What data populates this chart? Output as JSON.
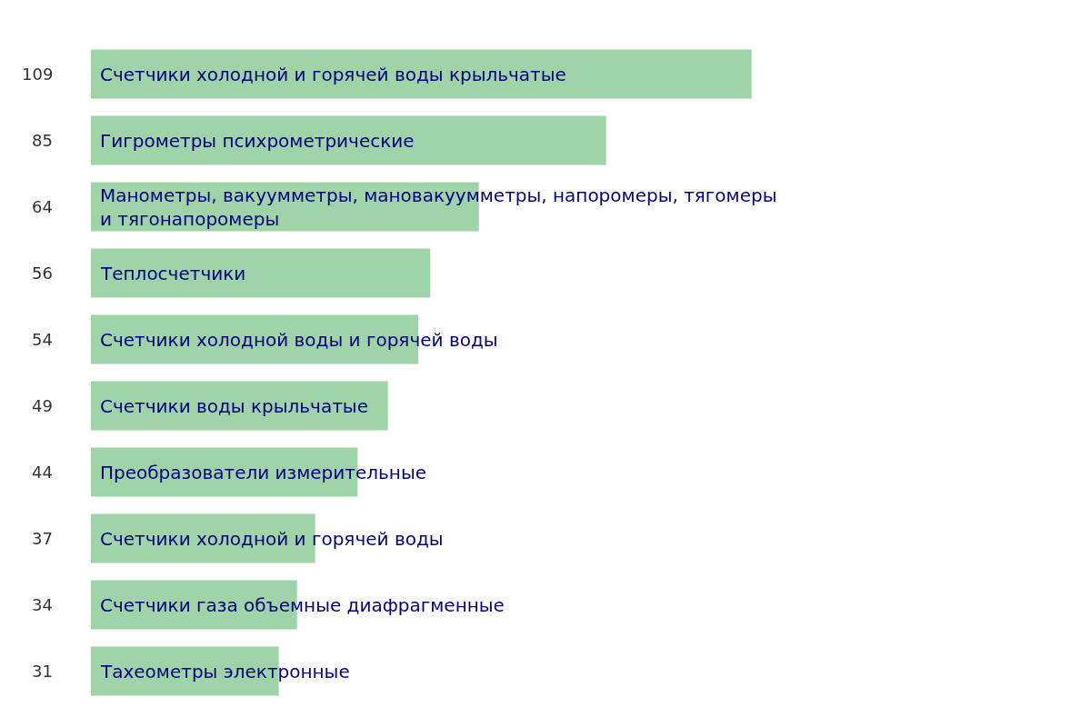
{
  "chart_data": {
    "type": "bar",
    "orientation": "horizontal",
    "data_labels": true,
    "color": "#9fd4a8",
    "categories": [
      "Счетчики холодной и горячей воды крыльчатые",
      "Гигрометры психрометрические",
      "Манометры, вакуумметры, мановакуумметры, напоромеры, тягомеры и тягонапоромеры",
      "Теплосчетчики",
      "Счетчики холодной воды и горячей воды",
      "Счетчики воды крыльчатые",
      "Преобразователи измерительные",
      "Счетчики холодной и горячей воды",
      "Счетчики газа объемные диафрагменные",
      "Тахеометры электронные"
    ],
    "values": [
      109,
      85,
      64,
      56,
      54,
      49,
      44,
      37,
      34,
      31
    ]
  }
}
